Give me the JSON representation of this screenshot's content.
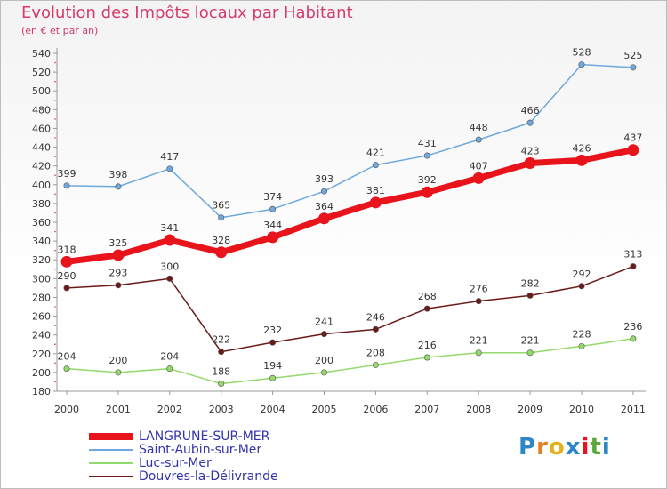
{
  "chart_data": {
    "type": "line",
    "title": "Evolution des Impôts locaux par Habitant",
    "subtitle": "(en € et par an)",
    "x": [
      "2000",
      "2001",
      "2002",
      "2003",
      "2004",
      "2005",
      "2006",
      "2007",
      "2008",
      "2009",
      "2010",
      "2011"
    ],
    "ylim": [
      180,
      540
    ],
    "yticks": [
      180,
      200,
      220,
      240,
      260,
      280,
      300,
      320,
      340,
      360,
      380,
      400,
      420,
      440,
      460,
      480,
      500,
      520,
      540
    ],
    "series": [
      {
        "name": "LANGRUNE-SUR-MER",
        "color": "#e8131b",
        "values": [
          318,
          325,
          341,
          328,
          344,
          364,
          381,
          392,
          407,
          423,
          426,
          437
        ]
      },
      {
        "name": "Saint-Aubin-sur-Mer",
        "color": "#6fa8dc",
        "values": [
          399,
          398,
          417,
          365,
          374,
          393,
          421,
          431,
          448,
          466,
          528,
          525
        ]
      },
      {
        "name": "Luc-sur-Mer",
        "color": "#93d96b",
        "values": [
          204,
          200,
          204,
          188,
          194,
          200,
          208,
          216,
          221,
          221,
          228,
          236
        ]
      },
      {
        "name": "Douvres-la-Délivrande",
        "color": "#6b1a1a",
        "values": [
          290,
          293,
          300,
          222,
          232,
          241,
          246,
          268,
          276,
          282,
          292,
          313
        ]
      }
    ],
    "grid": false,
    "legend": "bottom-left"
  },
  "logo": {
    "text": "Proxiti",
    "colors": [
      "#2e86c8",
      "#e87d1e",
      "#e0b21b",
      "#2e86c8",
      "#e8131b",
      "#5aa83c",
      "#2e86c8"
    ]
  }
}
